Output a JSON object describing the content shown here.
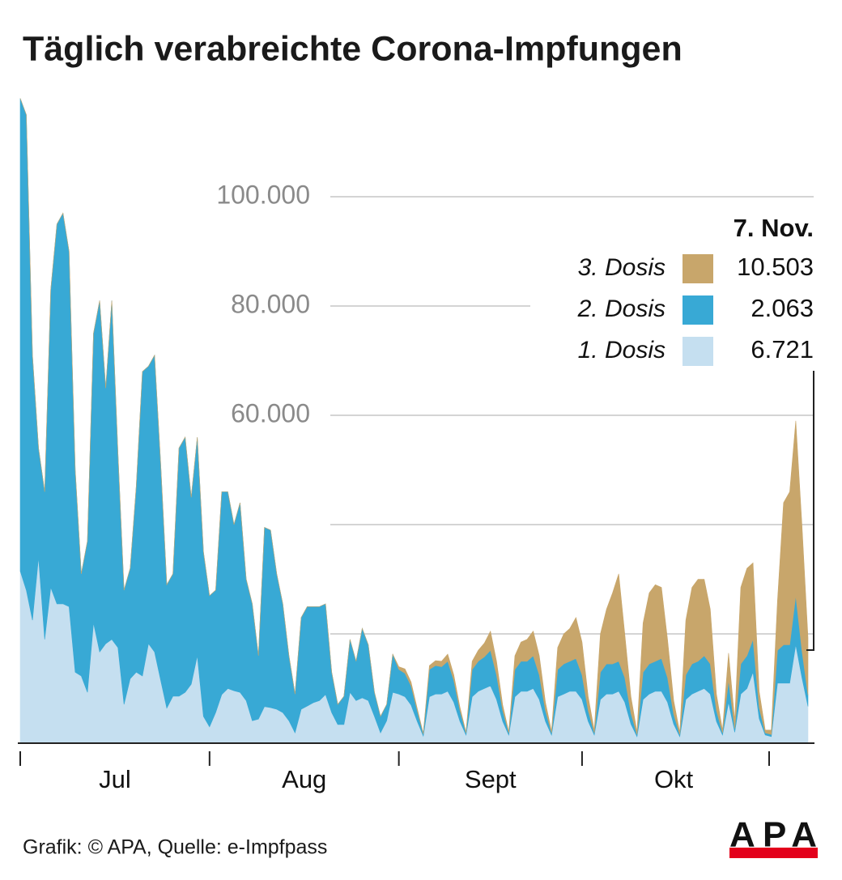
{
  "chart_data": {
    "type": "stacked_area",
    "title": "Täglich verabreichte Corona-Impfungen",
    "source": "Grafik: © APA, Quelle: e-Impfpass",
    "logo": "APA",
    "legend_title": "7. Nov.",
    "categories": [
      "Jul",
      null,
      null,
      null,
      null,
      null,
      null,
      null,
      null,
      null,
      null,
      null,
      null,
      null,
      null,
      null,
      null,
      null,
      null,
      null,
      null,
      null,
      null,
      null,
      null,
      null,
      null,
      null,
      null,
      null,
      null,
      "Aug",
      null,
      null,
      null,
      null,
      null,
      null,
      null,
      null,
      null,
      null,
      null,
      null,
      null,
      null,
      null,
      null,
      null,
      null,
      null,
      null,
      null,
      null,
      null,
      null,
      null,
      null,
      null,
      null,
      null,
      null,
      "Sept",
      null,
      null,
      null,
      null,
      null,
      null,
      null,
      null,
      null,
      null,
      null,
      null,
      null,
      null,
      null,
      null,
      null,
      null,
      null,
      null,
      null,
      null,
      null,
      null,
      null,
      null,
      null,
      null,
      null,
      "Okt",
      null,
      null,
      null,
      null,
      null,
      null,
      null,
      null,
      null,
      null,
      null,
      null,
      null,
      null,
      null,
      null,
      null,
      null,
      null,
      null,
      null,
      null,
      null,
      null,
      null,
      null,
      null,
      null,
      null,
      null,
      null,
      null,
      null,
      null,
      null,
      null,
      null
    ],
    "series": [
      {
        "name": "1. Dosis",
        "color": "#c5dff0",
        "values": [
          31500,
          28000,
          22500,
          34000,
          19000,
          28500,
          25500,
          25500,
          25000,
          13000,
          12300,
          9300,
          22000,
          16700,
          18200,
          19000,
          17500,
          7100,
          11800,
          13000,
          12300,
          18200,
          16700,
          11500,
          6400,
          8600,
          8600,
          9300,
          10800,
          16000,
          4900,
          3000,
          5600,
          8900,
          10000,
          9600,
          9300,
          7800,
          4100,
          4400,
          6700,
          6500,
          6200,
          5600,
          4100,
          1900,
          6200,
          6800,
          7400,
          7800,
          8900,
          5600,
          3400,
          3400,
          9300,
          7800,
          8300,
          7800,
          4900,
          1900,
          4100,
          9300,
          9000,
          8500,
          7000,
          4000,
          1300,
          8500,
          9000,
          9000,
          9500,
          7500,
          4000,
          1500,
          8500,
          9500,
          10000,
          10500,
          8000,
          4000,
          1500,
          8500,
          9500,
          9500,
          10000,
          8000,
          4000,
          1500,
          8500,
          9000,
          9500,
          9500,
          8000,
          4000,
          1500,
          8000,
          9000,
          9000,
          9500,
          7500,
          3500,
          1200,
          8000,
          9000,
          9500,
          9500,
          7500,
          3500,
          1200,
          8000,
          9000,
          9500,
          10000,
          9000,
          4000,
          1500,
          7500,
          2000,
          9000,
          10000,
          13000,
          4500,
          1500,
          1200,
          11000,
          11000,
          11000,
          18000,
          12000,
          6721
        ],
        "value_labels": [
          null,
          null,
          null,
          null,
          null,
          null,
          null,
          null,
          null,
          null,
          null,
          null,
          null,
          null,
          null,
          null,
          null,
          null,
          null,
          null,
          null,
          null,
          null,
          null,
          null,
          null,
          null,
          null,
          null,
          null,
          null,
          null,
          null,
          null,
          null,
          null,
          null,
          null,
          null,
          null,
          null,
          null,
          null,
          null,
          null,
          null,
          null,
          null,
          null,
          null,
          null,
          null,
          null,
          null,
          null,
          null,
          null,
          null,
          null,
          null,
          null,
          null,
          null,
          null,
          null,
          null,
          null,
          null,
          null,
          null,
          null,
          null,
          null,
          null,
          null,
          null,
          null,
          null,
          null,
          null,
          null,
          null,
          null,
          null,
          null,
          null,
          null,
          null,
          null,
          null,
          null,
          null,
          null,
          null,
          null,
          null,
          null,
          null,
          null,
          null,
          null,
          null,
          null,
          null,
          null,
          null,
          null,
          null,
          null,
          null,
          null,
          null,
          null,
          null,
          null,
          null,
          null,
          null,
          null,
          null,
          null,
          null,
          null,
          null,
          null,
          null,
          null,
          null,
          null,
          "6.721"
        ]
      },
      {
        "name": "2. Dosis",
        "color": "#38a9d5",
        "values": [
          86500,
          87000,
          48500,
          20000,
          27000,
          54500,
          69500,
          71500,
          65000,
          37000,
          18700,
          27700,
          53000,
          64300,
          46800,
          62000,
          35500,
          20900,
          20200,
          34000,
          55700,
          50800,
          54300,
          39500,
          22600,
          22400,
          45400,
          46700,
          34200,
          40000,
          30100,
          24000,
          22400,
          37100,
          36000,
          30400,
          34700,
          22200,
          21400,
          11600,
          32800,
          32500,
          24800,
          19900,
          11900,
          7100,
          16800,
          18200,
          17600,
          17200,
          16600,
          7400,
          3700,
          5200,
          9700,
          7200,
          12700,
          10200,
          4400,
          3000,
          3000,
          7000,
          4500,
          4300,
          3500,
          2000,
          400,
          5000,
          5200,
          5000,
          5500,
          4000,
          2000,
          400,
          5000,
          5500,
          5800,
          6500,
          4500,
          2000,
          400,
          5000,
          5500,
          5500,
          6000,
          4500,
          2000,
          400,
          5000,
          5500,
          5500,
          6000,
          4500,
          2000,
          400,
          5000,
          5500,
          5500,
          5500,
          4500,
          2000,
          400,
          5000,
          5500,
          5500,
          6000,
          4500,
          1800,
          400,
          4500,
          5500,
          5500,
          6000,
          5500,
          2000,
          400,
          4000,
          700,
          5500,
          6000,
          6000,
          2000,
          400,
          400,
          6000,
          7000,
          7000,
          9000,
          5000,
          2063
        ],
        "value_labels": [
          null,
          null,
          null,
          null,
          null,
          null,
          null,
          null,
          null,
          null,
          null,
          null,
          null,
          null,
          null,
          null,
          null,
          null,
          null,
          null,
          null,
          null,
          null,
          null,
          null,
          null,
          null,
          null,
          null,
          null,
          null,
          null,
          null,
          null,
          null,
          null,
          null,
          null,
          null,
          null,
          null,
          null,
          null,
          null,
          null,
          null,
          null,
          null,
          null,
          null,
          null,
          null,
          null,
          null,
          null,
          null,
          null,
          null,
          null,
          null,
          null,
          null,
          null,
          null,
          null,
          null,
          null,
          null,
          null,
          null,
          null,
          null,
          null,
          null,
          null,
          null,
          null,
          null,
          null,
          null,
          null,
          null,
          null,
          null,
          null,
          null,
          null,
          null,
          null,
          null,
          null,
          null,
          null,
          null,
          null,
          null,
          null,
          null,
          null,
          null,
          null,
          null,
          null,
          null,
          null,
          null,
          null,
          null,
          null,
          null,
          null,
          null,
          null,
          null,
          null,
          null,
          null,
          null,
          null,
          null,
          null,
          null,
          null,
          null,
          null,
          null,
          null,
          null,
          null,
          "2.063"
        ]
      },
      {
        "name": "3. Dosis",
        "color": "#c8a66b",
        "values": [
          0,
          0,
          0,
          0,
          0,
          0,
          0,
          0,
          0,
          0,
          0,
          0,
          0,
          0,
          0,
          0,
          0,
          0,
          0,
          0,
          0,
          0,
          0,
          0,
          0,
          0,
          0,
          0,
          0,
          0,
          0,
          0,
          0,
          0,
          0,
          0,
          0,
          0,
          0,
          0,
          0,
          0,
          0,
          0,
          0,
          0,
          0,
          0,
          0,
          0,
          0,
          0,
          0,
          0,
          0,
          0,
          0,
          0,
          0,
          0,
          0,
          0,
          500,
          800,
          700,
          400,
          100,
          700,
          900,
          1000,
          1300,
          1000,
          600,
          100,
          1500,
          2000,
          2500,
          3500,
          2500,
          1000,
          200,
          2500,
          3500,
          4000,
          4500,
          3500,
          1500,
          300,
          4000,
          5500,
          6000,
          7500,
          6000,
          2500,
          500,
          7000,
          10000,
          13000,
          16000,
          8000,
          3000,
          500,
          9000,
          13000,
          14000,
          13000,
          7000,
          2500,
          400,
          10000,
          14000,
          15000,
          14000,
          10000,
          3000,
          500,
          5000,
          1500,
          14000,
          16000,
          14000,
          3000,
          500,
          800,
          9000,
          26000,
          28000,
          32000,
          23000,
          10503
        ],
        "value_labels": [
          null,
          null,
          null,
          null,
          null,
          null,
          null,
          null,
          null,
          null,
          null,
          null,
          null,
          null,
          null,
          null,
          null,
          null,
          null,
          null,
          null,
          null,
          null,
          null,
          null,
          null,
          null,
          null,
          null,
          null,
          null,
          null,
          null,
          null,
          null,
          null,
          null,
          null,
          null,
          null,
          null,
          null,
          null,
          null,
          null,
          null,
          null,
          null,
          null,
          null,
          null,
          null,
          null,
          null,
          null,
          null,
          null,
          null,
          null,
          null,
          null,
          null,
          null,
          null,
          null,
          null,
          null,
          null,
          null,
          null,
          null,
          null,
          null,
          null,
          null,
          null,
          null,
          null,
          null,
          null,
          null,
          null,
          null,
          null,
          null,
          null,
          null,
          null,
          null,
          null,
          null,
          null,
          null,
          null,
          null,
          null,
          null,
          null,
          null,
          null,
          null,
          null,
          null,
          null,
          null,
          null,
          null,
          null,
          null,
          null,
          null,
          null,
          null,
          null,
          null,
          null,
          null,
          null,
          null,
          null,
          null,
          null,
          null,
          null,
          null,
          null,
          null,
          null,
          null,
          "10.503"
        ]
      }
    ],
    "ylim": [
      0,
      120000
    ],
    "yticks": [
      {
        "value": 20000,
        "label": null
      },
      {
        "value": 40000,
        "label": null
      },
      {
        "value": 60000,
        "label": "60.000"
      },
      {
        "value": 80000,
        "label": "80.000"
      },
      {
        "value": 100000,
        "label": "100.000"
      }
    ],
    "grid": true
  }
}
